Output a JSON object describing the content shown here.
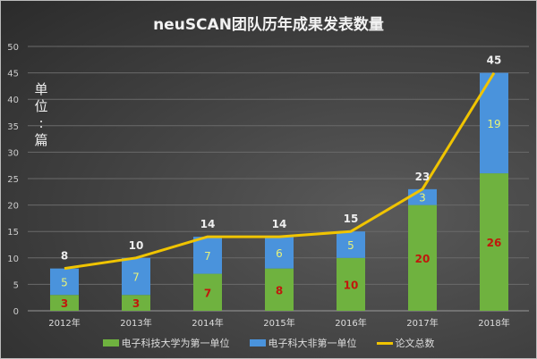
{
  "chart_data": {
    "type": "bar",
    "stacked": true,
    "title": "neuSCAN团队历年成果发表数量",
    "ylabel": "单位：篇",
    "categories": [
      "2012年",
      "2013年",
      "2014年",
      "2015年",
      "2016年",
      "2017年",
      "2018年"
    ],
    "ylim": [
      0,
      50
    ],
    "yticks": [
      0,
      5,
      10,
      15,
      20,
      25,
      30,
      35,
      40,
      45,
      50
    ],
    "grid": true,
    "legend_position": "bottom",
    "series": [
      {
        "name": "电子科技大学为第一单位",
        "type": "bar",
        "color": "#6fb23f",
        "label_color": "#c0180c",
        "values": [
          3,
          3,
          7,
          8,
          10,
          20,
          26
        ]
      },
      {
        "name": "电子科大非第一单位",
        "type": "bar",
        "color": "#4a93dc",
        "label_color": "#e8f27a",
        "values": [
          5,
          7,
          7,
          6,
          5,
          3,
          19
        ]
      },
      {
        "name": "论文总数",
        "type": "line",
        "color": "#f0c400",
        "label_color": "#eeeeee",
        "values": [
          8,
          10,
          14,
          14,
          15,
          23,
          45
        ]
      }
    ]
  }
}
